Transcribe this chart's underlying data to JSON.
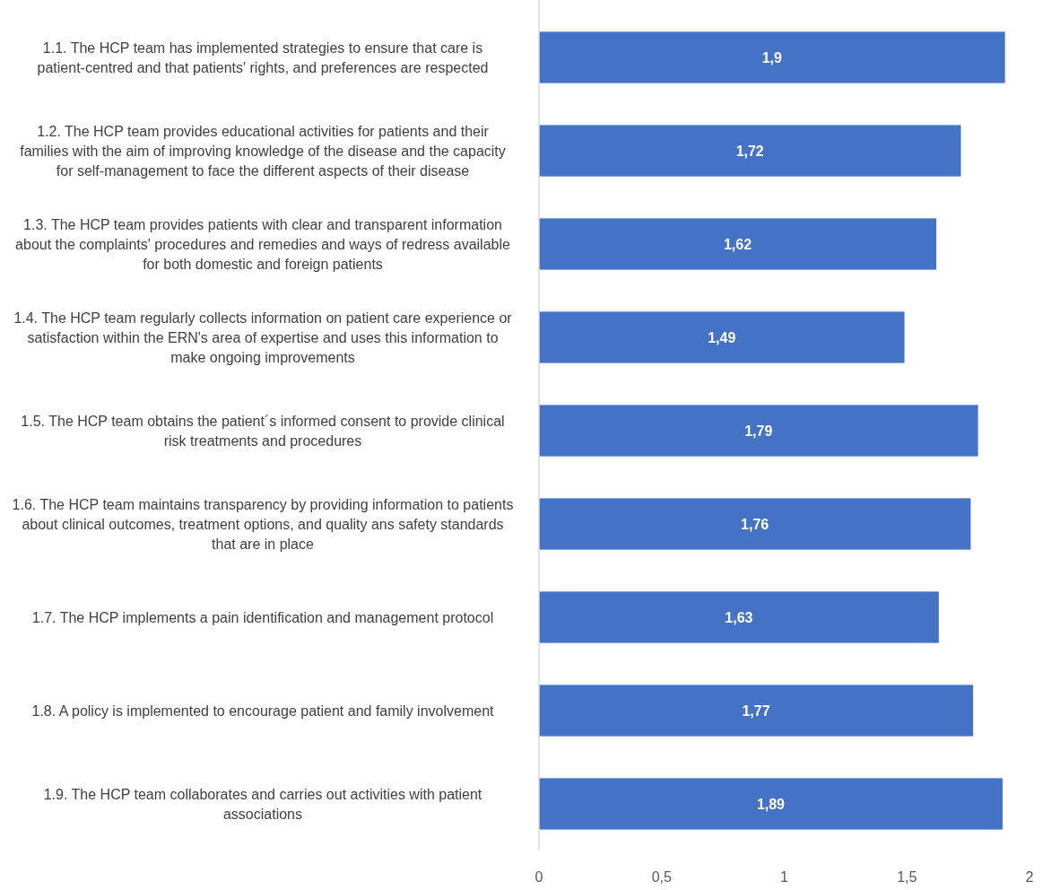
{
  "chart_data": {
    "type": "bar",
    "orientation": "horizontal",
    "categories": [
      "1.1. The HCP team has implemented strategies to ensure that care is patient-centred and that patients' rights, and preferences are respected",
      "1.2. The HCP team provides educational activities for patients and their families with the aim of improving knowledge of the disease and the capacity for self-management to face the different aspects of their disease",
      "1.3. The HCP team provides patients with clear and transparent information about the complaints' procedures and remedies and ways of redress available for both domestic and foreign patients",
      "1.4. The HCP team regularly collects information on patient care experience or satisfaction within the ERN's area of expertise and uses this information to make ongoing improvements",
      "1.5. The HCP team obtains the patient´s informed consent to provide clinical risk treatments and procedures",
      "1.6. The HCP team maintains transparency by providing information to patients about clinical outcomes, treatment options, and quality ans safety standards that are in place",
      "1.7. The HCP implements a pain identification and management protocol",
      "1.8. A policy is implemented to encourage patient and family involvement",
      "1.9. The HCP team collaborates and carries out activities with patient associations"
    ],
    "values": [
      1.9,
      1.72,
      1.62,
      1.49,
      1.79,
      1.76,
      1.63,
      1.77,
      1.89
    ],
    "value_labels": [
      "1,9",
      "1,72",
      "1,62",
      "1,49",
      "1,79",
      "1,76",
      "1,63",
      "1,77",
      "1,89"
    ],
    "color": "#4472c4",
    "xlim": [
      0,
      2
    ],
    "xticks": [
      0,
      {
        "value": 0.5,
        "label": "0,5"
      },
      1,
      {
        "value": 1.5,
        "label": "1,5"
      },
      2
    ],
    "grid": false
  }
}
